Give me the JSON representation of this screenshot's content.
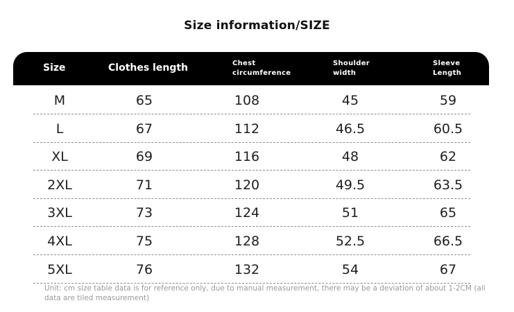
{
  "title": "Size information/SIZE",
  "headers": {
    "size": "Size",
    "length": "Clothes length",
    "chest_1": "Chest",
    "chest_2": "circumference",
    "shoulder_1": "Shoulder",
    "shoulder_2": "width",
    "sleeve_1": "Sleeve",
    "sleeve_2": "Length"
  },
  "rows": [
    [
      "M",
      "65",
      "108",
      "45",
      "59"
    ],
    [
      "L",
      "67",
      "112",
      "46.5",
      "60.5"
    ],
    [
      "XL",
      "69",
      "116",
      "48",
      "62"
    ],
    [
      "2XL",
      "71",
      "120",
      "49.5",
      "63.5"
    ],
    [
      "3XL",
      "73",
      "124",
      "51",
      "65"
    ],
    [
      "4XL",
      "75",
      "128",
      "52.5",
      "66.5"
    ],
    [
      "5XL",
      "76",
      "132",
      "54",
      "67"
    ]
  ],
  "footnote": "Unit: cm size table data is for reference only, due to manual measurement, there may be a deviation of about 1-2CM (all data are tiled measurement)",
  "colors": {
    "header_bg": "#000000",
    "header_text": "#ffffff",
    "divider": "#8a8a8a"
  }
}
